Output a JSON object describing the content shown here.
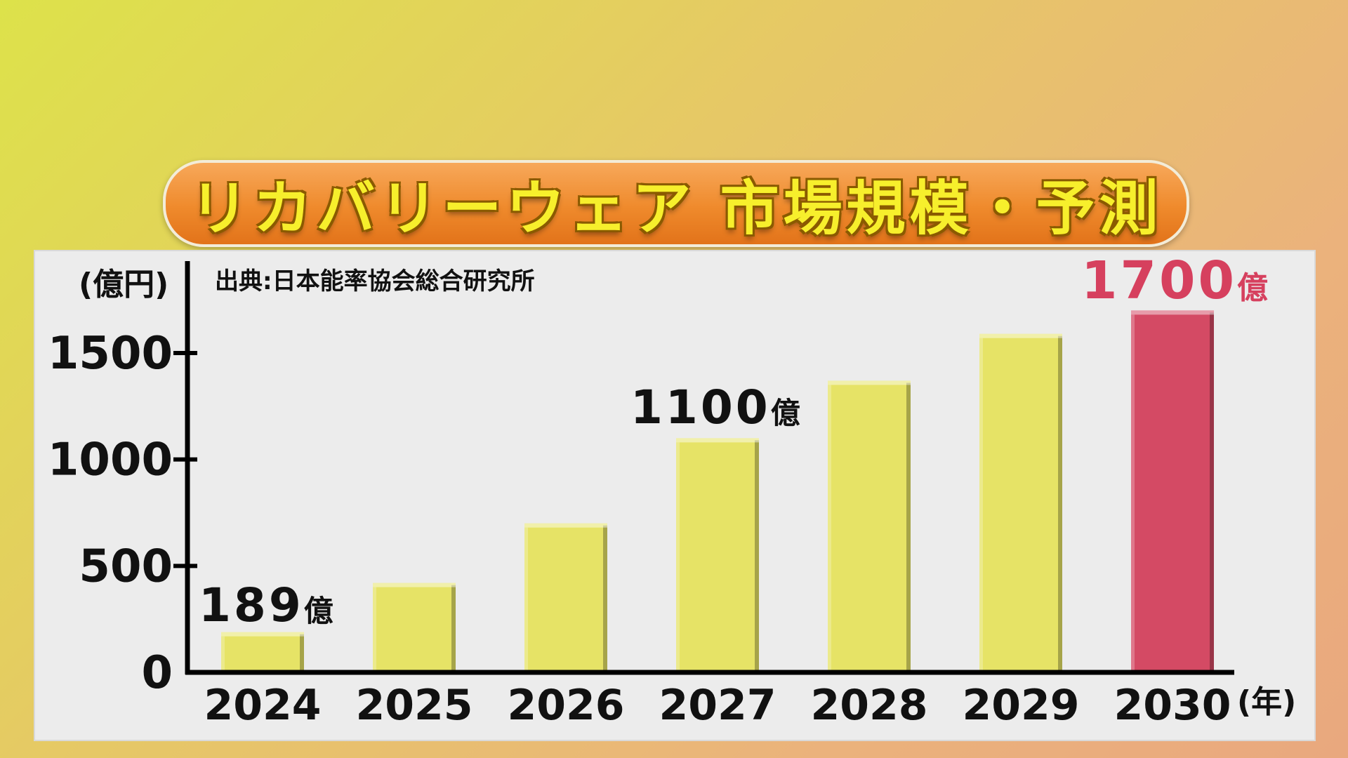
{
  "title": "リカバリーウェア 市場規模・予測",
  "source_note": "出典:日本能率協会総合研究所",
  "colors": {
    "bar": "#e6e366",
    "highlight_bar": "#d44a64",
    "highlight_text": "#d6405e",
    "text": "#111111"
  },
  "chart_data": {
    "type": "bar",
    "categories": [
      "2024",
      "2025",
      "2026",
      "2027",
      "2028",
      "2029",
      "2030"
    ],
    "values": [
      189,
      420,
      700,
      1100,
      1370,
      1590,
      1700
    ],
    "highlight_index": 6,
    "ylabel": "(億円)",
    "xlabel": "(年)",
    "ylim": [
      0,
      1700
    ],
    "yticks": [
      0,
      500,
      1000,
      1500
    ],
    "grid": false,
    "annotations": [
      {
        "index": 0,
        "value": "189",
        "unit": "億"
      },
      {
        "index": 3,
        "value": "1100",
        "unit": "億"
      },
      {
        "index": 6,
        "value": "1700",
        "unit": "億"
      }
    ]
  }
}
